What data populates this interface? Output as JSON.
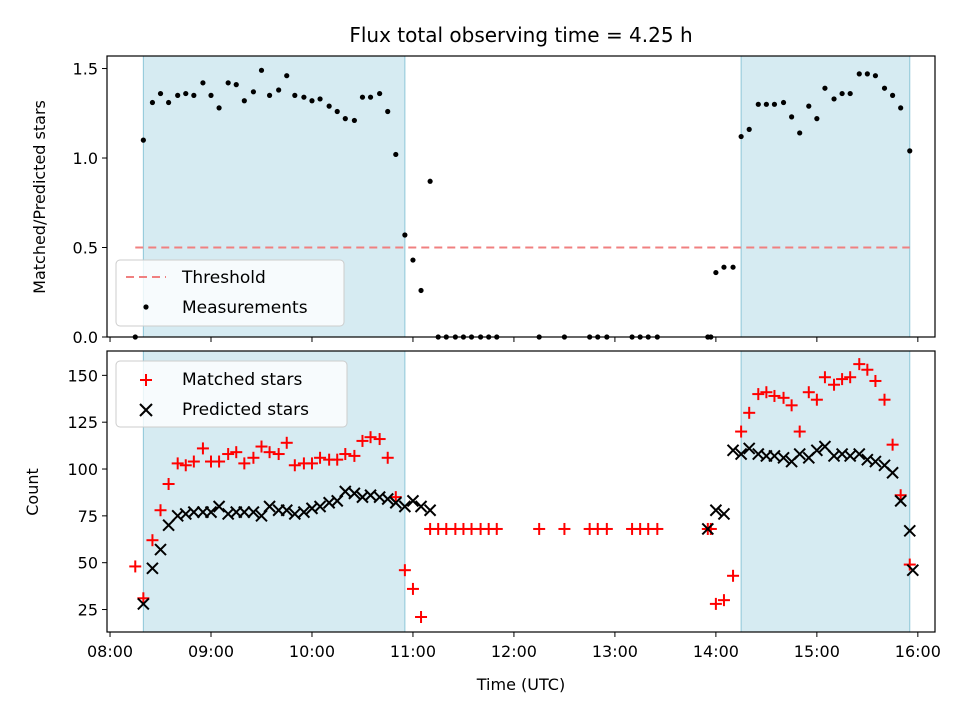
{
  "chart_data": [
    {
      "type": "scatter",
      "title": "Flux total observing time = 4.25 h",
      "xlabel": "",
      "ylabel": "Matched/Predicted stars",
      "xlim": [
        7.97,
        16.17
      ],
      "ylim": [
        0,
        1.57
      ],
      "yticks": [
        {
          "v": 0.0,
          "label": "0.0"
        },
        {
          "v": 0.5,
          "label": "0.5"
        },
        {
          "v": 1.0,
          "label": "1.0"
        },
        {
          "v": 1.5,
          "label": "1.5"
        }
      ],
      "shaded_intervals": [
        [
          8.33,
          10.92
        ],
        [
          14.25,
          15.92
        ]
      ],
      "threshold": {
        "value": 0.5,
        "x_start": 8.25,
        "x_end": 15.92
      },
      "legend": {
        "placement": "lower-left",
        "entries": [
          "Threshold",
          "Measurements"
        ]
      },
      "series": [
        {
          "name": "Measurements",
          "points": [
            [
              8.25,
              0.0
            ],
            [
              8.33,
              1.1
            ],
            [
              8.42,
              1.31
            ],
            [
              8.5,
              1.36
            ],
            [
              8.58,
              1.31
            ],
            [
              8.67,
              1.35
            ],
            [
              8.75,
              1.36
            ],
            [
              8.83,
              1.35
            ],
            [
              8.92,
              1.42
            ],
            [
              9.0,
              1.35
            ],
            [
              9.08,
              1.28
            ],
            [
              9.17,
              1.42
            ],
            [
              9.25,
              1.41
            ],
            [
              9.33,
              1.32
            ],
            [
              9.42,
              1.37
            ],
            [
              9.5,
              1.49
            ],
            [
              9.58,
              1.35
            ],
            [
              9.67,
              1.38
            ],
            [
              9.75,
              1.46
            ],
            [
              9.83,
              1.35
            ],
            [
              9.92,
              1.34
            ],
            [
              10.0,
              1.32
            ],
            [
              10.08,
              1.33
            ],
            [
              10.17,
              1.29
            ],
            [
              10.25,
              1.26
            ],
            [
              10.33,
              1.22
            ],
            [
              10.42,
              1.21
            ],
            [
              10.5,
              1.34
            ],
            [
              10.58,
              1.34
            ],
            [
              10.67,
              1.36
            ],
            [
              10.75,
              1.26
            ],
            [
              10.83,
              1.02
            ],
            [
              10.92,
              0.57
            ],
            [
              11.0,
              0.43
            ],
            [
              11.08,
              0.26
            ],
            [
              11.17,
              0.87
            ],
            [
              11.25,
              0.0
            ],
            [
              11.33,
              0.0
            ],
            [
              11.42,
              0.0
            ],
            [
              11.5,
              0.0
            ],
            [
              11.58,
              0.0
            ],
            [
              11.67,
              0.0
            ],
            [
              11.75,
              0.0
            ],
            [
              11.83,
              0.0
            ],
            [
              12.25,
              0.0
            ],
            [
              12.5,
              0.0
            ],
            [
              12.75,
              0.0
            ],
            [
              12.83,
              0.0
            ],
            [
              12.92,
              0.0
            ],
            [
              13.17,
              0.0
            ],
            [
              13.25,
              0.0
            ],
            [
              13.33,
              0.0
            ],
            [
              13.42,
              0.0
            ],
            [
              13.92,
              0.0
            ],
            [
              13.95,
              0.0
            ],
            [
              14.0,
              0.36
            ],
            [
              14.08,
              0.39
            ],
            [
              14.17,
              0.39
            ],
            [
              14.25,
              1.12
            ],
            [
              14.33,
              1.16
            ],
            [
              14.42,
              1.3
            ],
            [
              14.5,
              1.3
            ],
            [
              14.58,
              1.3
            ],
            [
              14.67,
              1.31
            ],
            [
              14.75,
              1.23
            ],
            [
              14.83,
              1.14
            ],
            [
              14.92,
              1.29
            ],
            [
              15.0,
              1.22
            ],
            [
              15.08,
              1.39
            ],
            [
              15.17,
              1.33
            ],
            [
              15.25,
              1.36
            ],
            [
              15.33,
              1.36
            ],
            [
              15.42,
              1.47
            ],
            [
              15.5,
              1.47
            ],
            [
              15.58,
              1.46
            ],
            [
              15.67,
              1.39
            ],
            [
              15.75,
              1.35
            ],
            [
              15.83,
              1.28
            ],
            [
              15.92,
              1.04
            ]
          ]
        }
      ]
    },
    {
      "type": "scatter",
      "title": "",
      "xlabel": "Time (UTC)",
      "ylabel": "Count",
      "xlim": [
        7.97,
        16.17
      ],
      "ylim": [
        13,
        163
      ],
      "xticks": [
        {
          "v": 8,
          "label": "08:00"
        },
        {
          "v": 9,
          "label": "09:00"
        },
        {
          "v": 10,
          "label": "10:00"
        },
        {
          "v": 11,
          "label": "11:00"
        },
        {
          "v": 12,
          "label": "12:00"
        },
        {
          "v": 13,
          "label": "13:00"
        },
        {
          "v": 14,
          "label": "14:00"
        },
        {
          "v": 15,
          "label": "15:00"
        },
        {
          "v": 16,
          "label": "16:00"
        }
      ],
      "yticks": [
        {
          "v": 25,
          "label": "25"
        },
        {
          "v": 50,
          "label": "50"
        },
        {
          "v": 75,
          "label": "75"
        },
        {
          "v": 100,
          "label": "100"
        },
        {
          "v": 125,
          "label": "125"
        },
        {
          "v": 150,
          "label": "150"
        }
      ],
      "shaded_intervals": [
        [
          8.33,
          10.92
        ],
        [
          14.25,
          15.92
        ]
      ],
      "legend": {
        "placement": "top-left",
        "entries": [
          "Matched stars",
          "Predicted stars"
        ]
      },
      "series": [
        {
          "name": "Matched stars",
          "marker": "+",
          "color": "#ff0000",
          "points": [
            [
              8.25,
              48
            ],
            [
              8.33,
              31
            ],
            [
              8.42,
              62
            ],
            [
              8.5,
              78
            ],
            [
              8.58,
              92
            ],
            [
              8.67,
              103
            ],
            [
              8.75,
              102
            ],
            [
              8.83,
              104
            ],
            [
              8.92,
              111
            ],
            [
              9.0,
              104
            ],
            [
              9.08,
              104
            ],
            [
              9.17,
              108
            ],
            [
              9.25,
              109
            ],
            [
              9.33,
              103
            ],
            [
              9.42,
              106
            ],
            [
              9.5,
              112
            ],
            [
              9.58,
              109
            ],
            [
              9.67,
              108
            ],
            [
              9.75,
              114
            ],
            [
              9.83,
              102
            ],
            [
              9.92,
              103
            ],
            [
              10.0,
              103
            ],
            [
              10.08,
              106
            ],
            [
              10.17,
              105
            ],
            [
              10.25,
              105
            ],
            [
              10.33,
              108
            ],
            [
              10.42,
              107
            ],
            [
              10.5,
              115
            ],
            [
              10.58,
              117
            ],
            [
              10.67,
              116
            ],
            [
              10.75,
              106
            ],
            [
              10.83,
              85
            ],
            [
              10.92,
              46
            ],
            [
              11.0,
              36
            ],
            [
              11.08,
              21
            ],
            [
              11.17,
              68
            ],
            [
              11.25,
              68
            ],
            [
              11.33,
              68
            ],
            [
              11.42,
              68
            ],
            [
              11.5,
              68
            ],
            [
              11.58,
              68
            ],
            [
              11.67,
              68
            ],
            [
              11.75,
              68
            ],
            [
              11.83,
              68
            ],
            [
              12.25,
              68
            ],
            [
              12.5,
              68
            ],
            [
              12.75,
              68
            ],
            [
              12.83,
              68
            ],
            [
              12.92,
              68
            ],
            [
              13.17,
              68
            ],
            [
              13.25,
              68
            ],
            [
              13.33,
              68
            ],
            [
              13.42,
              68
            ],
            [
              13.92,
              68
            ],
            [
              13.95,
              68
            ],
            [
              14.0,
              28
            ],
            [
              14.08,
              30
            ],
            [
              14.17,
              43
            ],
            [
              14.25,
              120
            ],
            [
              14.33,
              130
            ],
            [
              14.42,
              140
            ],
            [
              14.5,
              141
            ],
            [
              14.58,
              139
            ],
            [
              14.67,
              138
            ],
            [
              14.75,
              134
            ],
            [
              14.83,
              120
            ],
            [
              14.92,
              141
            ],
            [
              15.0,
              137
            ],
            [
              15.08,
              149
            ],
            [
              15.17,
              145
            ],
            [
              15.25,
              148
            ],
            [
              15.33,
              149
            ],
            [
              15.42,
              156
            ],
            [
              15.5,
              153
            ],
            [
              15.58,
              147
            ],
            [
              15.67,
              137
            ],
            [
              15.75,
              113
            ],
            [
              15.83,
              86
            ],
            [
              15.92,
              49
            ]
          ]
        },
        {
          "name": "Predicted stars",
          "marker": "x",
          "color": "#000000",
          "points": [
            [
              8.33,
              28
            ],
            [
              8.42,
              47
            ],
            [
              8.5,
              57
            ],
            [
              8.58,
              70
            ],
            [
              8.67,
              75
            ],
            [
              8.75,
              76
            ],
            [
              8.83,
              77
            ],
            [
              8.92,
              77
            ],
            [
              9.0,
              77
            ],
            [
              9.08,
              80
            ],
            [
              9.17,
              76
            ],
            [
              9.25,
              77
            ],
            [
              9.33,
              77
            ],
            [
              9.42,
              77
            ],
            [
              9.5,
              75
            ],
            [
              9.58,
              80
            ],
            [
              9.67,
              78
            ],
            [
              9.75,
              78
            ],
            [
              9.83,
              76
            ],
            [
              9.92,
              77
            ],
            [
              10.0,
              79
            ],
            [
              10.08,
              80
            ],
            [
              10.17,
              82
            ],
            [
              10.25,
              83
            ],
            [
              10.33,
              88
            ],
            [
              10.42,
              87
            ],
            [
              10.5,
              85
            ],
            [
              10.58,
              86
            ],
            [
              10.67,
              85
            ],
            [
              10.75,
              84
            ],
            [
              10.83,
              82
            ],
            [
              10.92,
              80
            ],
            [
              11.0,
              83
            ],
            [
              11.08,
              80
            ],
            [
              11.17,
              78
            ],
            [
              13.92,
              68
            ],
            [
              14.0,
              78
            ],
            [
              14.08,
              76
            ],
            [
              14.17,
              110
            ],
            [
              14.25,
              108
            ],
            [
              14.33,
              111
            ],
            [
              14.42,
              108
            ],
            [
              14.5,
              107
            ],
            [
              14.58,
              107
            ],
            [
              14.67,
              106
            ],
            [
              14.75,
              104
            ],
            [
              14.83,
              108
            ],
            [
              14.92,
              106
            ],
            [
              15.0,
              110
            ],
            [
              15.08,
              112
            ],
            [
              15.17,
              107
            ],
            [
              15.25,
              108
            ],
            [
              15.33,
              107
            ],
            [
              15.42,
              108
            ],
            [
              15.5,
              105
            ],
            [
              15.58,
              104
            ],
            [
              15.67,
              102
            ],
            [
              15.75,
              98
            ],
            [
              15.83,
              83
            ],
            [
              15.92,
              67
            ],
            [
              15.95,
              46
            ]
          ]
        }
      ]
    }
  ]
}
